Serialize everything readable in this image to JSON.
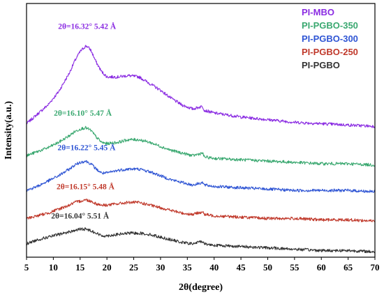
{
  "chart_data": {
    "type": "line",
    "xlabel": "2θ(degree)",
    "ylabel": "Intensity(a.u.)",
    "xlim": [
      5,
      70
    ],
    "x_ticks": [
      5,
      10,
      15,
      20,
      25,
      30,
      35,
      40,
      45,
      50,
      55,
      60,
      65,
      70
    ],
    "legend_position": "top-right",
    "series": [
      {
        "name": "PI-MBO",
        "color": "#8a2be2",
        "x": [
          5,
          7,
          9,
          11,
          13,
          14,
          15,
          16,
          16.3,
          17,
          18,
          19,
          20,
          22,
          24,
          26,
          28,
          30,
          32,
          34,
          36,
          37.8,
          38.2,
          40,
          45,
          50,
          55,
          60,
          65,
          70
        ],
        "y": [
          10.0,
          10.7,
          11.4,
          12.4,
          13.8,
          14.7,
          15.4,
          15.8,
          15.8,
          15.5,
          14.6,
          13.9,
          13.5,
          13.5,
          13.6,
          13.5,
          13.0,
          12.5,
          11.9,
          11.4,
          11.1,
          11.3,
          11.0,
          10.8,
          10.5,
          10.3,
          10.1,
          10.0,
          9.9,
          9.8
        ]
      },
      {
        "name": "PI-PGBO-350",
        "color": "#3aa870",
        "x": [
          5,
          7,
          9,
          11,
          13,
          14,
          15,
          16,
          17,
          18,
          19,
          20,
          22,
          24,
          26,
          28,
          30,
          32,
          34,
          36,
          37.8,
          38.2,
          40,
          45,
          50,
          55,
          60,
          65,
          70
        ],
        "y": [
          7.6,
          7.9,
          8.2,
          8.6,
          9.1,
          9.4,
          9.6,
          9.7,
          9.5,
          9.0,
          8.6,
          8.5,
          8.6,
          8.8,
          8.8,
          8.6,
          8.3,
          8.0,
          7.8,
          7.6,
          7.8,
          7.5,
          7.4,
          7.3,
          7.2,
          7.1,
          7.0,
          7.0,
          6.9
        ]
      },
      {
        "name": "PI-PGBO-300",
        "color": "#2f55d4",
        "x": [
          5,
          7,
          9,
          11,
          13,
          14,
          15,
          16,
          17,
          18,
          19,
          20,
          22,
          24,
          26,
          28,
          30,
          32,
          34,
          36,
          37.8,
          38.2,
          40,
          45,
          50,
          55,
          60,
          65,
          70
        ],
        "y": [
          5.0,
          5.3,
          5.7,
          6.1,
          6.6,
          6.9,
          7.1,
          7.2,
          7.0,
          6.6,
          6.3,
          6.3,
          6.5,
          6.6,
          6.6,
          6.4,
          6.1,
          5.8,
          5.6,
          5.4,
          5.6,
          5.4,
          5.3,
          5.2,
          5.1,
          5.0,
          5.0,
          5.0,
          4.9
        ]
      },
      {
        "name": "PI-PGBO-250",
        "color": "#c0392b",
        "x": [
          5,
          7,
          9,
          11,
          13,
          14,
          15,
          16,
          17,
          18,
          19,
          20,
          22,
          24,
          26,
          28,
          30,
          32,
          34,
          36,
          37.8,
          38.2,
          40,
          45,
          50,
          55,
          60,
          65,
          70
        ],
        "y": [
          2.9,
          3.1,
          3.3,
          3.6,
          3.9,
          4.1,
          4.2,
          4.3,
          4.2,
          4.0,
          3.9,
          3.9,
          4.0,
          4.1,
          4.1,
          3.9,
          3.7,
          3.5,
          3.3,
          3.2,
          3.4,
          3.2,
          3.1,
          3.0,
          2.9,
          2.9,
          2.8,
          2.8,
          2.7
        ]
      },
      {
        "name": "PI-PGBO",
        "color": "#333333",
        "x": [
          5,
          7,
          9,
          11,
          13,
          14,
          15,
          16,
          17,
          18,
          19,
          20,
          22,
          24,
          26,
          28,
          30,
          32,
          34,
          36,
          37.8,
          38.2,
          40,
          45,
          50,
          55,
          60,
          65,
          70
        ],
        "y": [
          1.0,
          1.3,
          1.5,
          1.7,
          1.9,
          2.0,
          2.1,
          2.1,
          2.0,
          1.8,
          1.6,
          1.6,
          1.7,
          1.8,
          1.8,
          1.7,
          1.5,
          1.3,
          1.1,
          1.0,
          1.2,
          1.0,
          0.9,
          0.8,
          0.7,
          0.6,
          0.5,
          0.5,
          0.4
        ]
      }
    ],
    "annotations": [
      {
        "text": "2θ=16.32° 5.42 Å",
        "color": "#8a2be2",
        "x": 16.3,
        "y": 17.1
      },
      {
        "text": "2θ=16.10° 5.47 Å",
        "color": "#3aa870",
        "x": 15.5,
        "y": 10.6
      },
      {
        "text": "2θ=16.22° 5.45 Å",
        "color": "#2f55d4",
        "x": 16.2,
        "y": 8.0
      },
      {
        "text": "2θ=16.15° 5.48 Å",
        "color": "#c0392b",
        "x": 16.0,
        "y": 5.1
      },
      {
        "text": "2θ=16.04° 5.51 Å",
        "color": "#333333",
        "x": 15.0,
        "y": 2.9
      }
    ]
  }
}
